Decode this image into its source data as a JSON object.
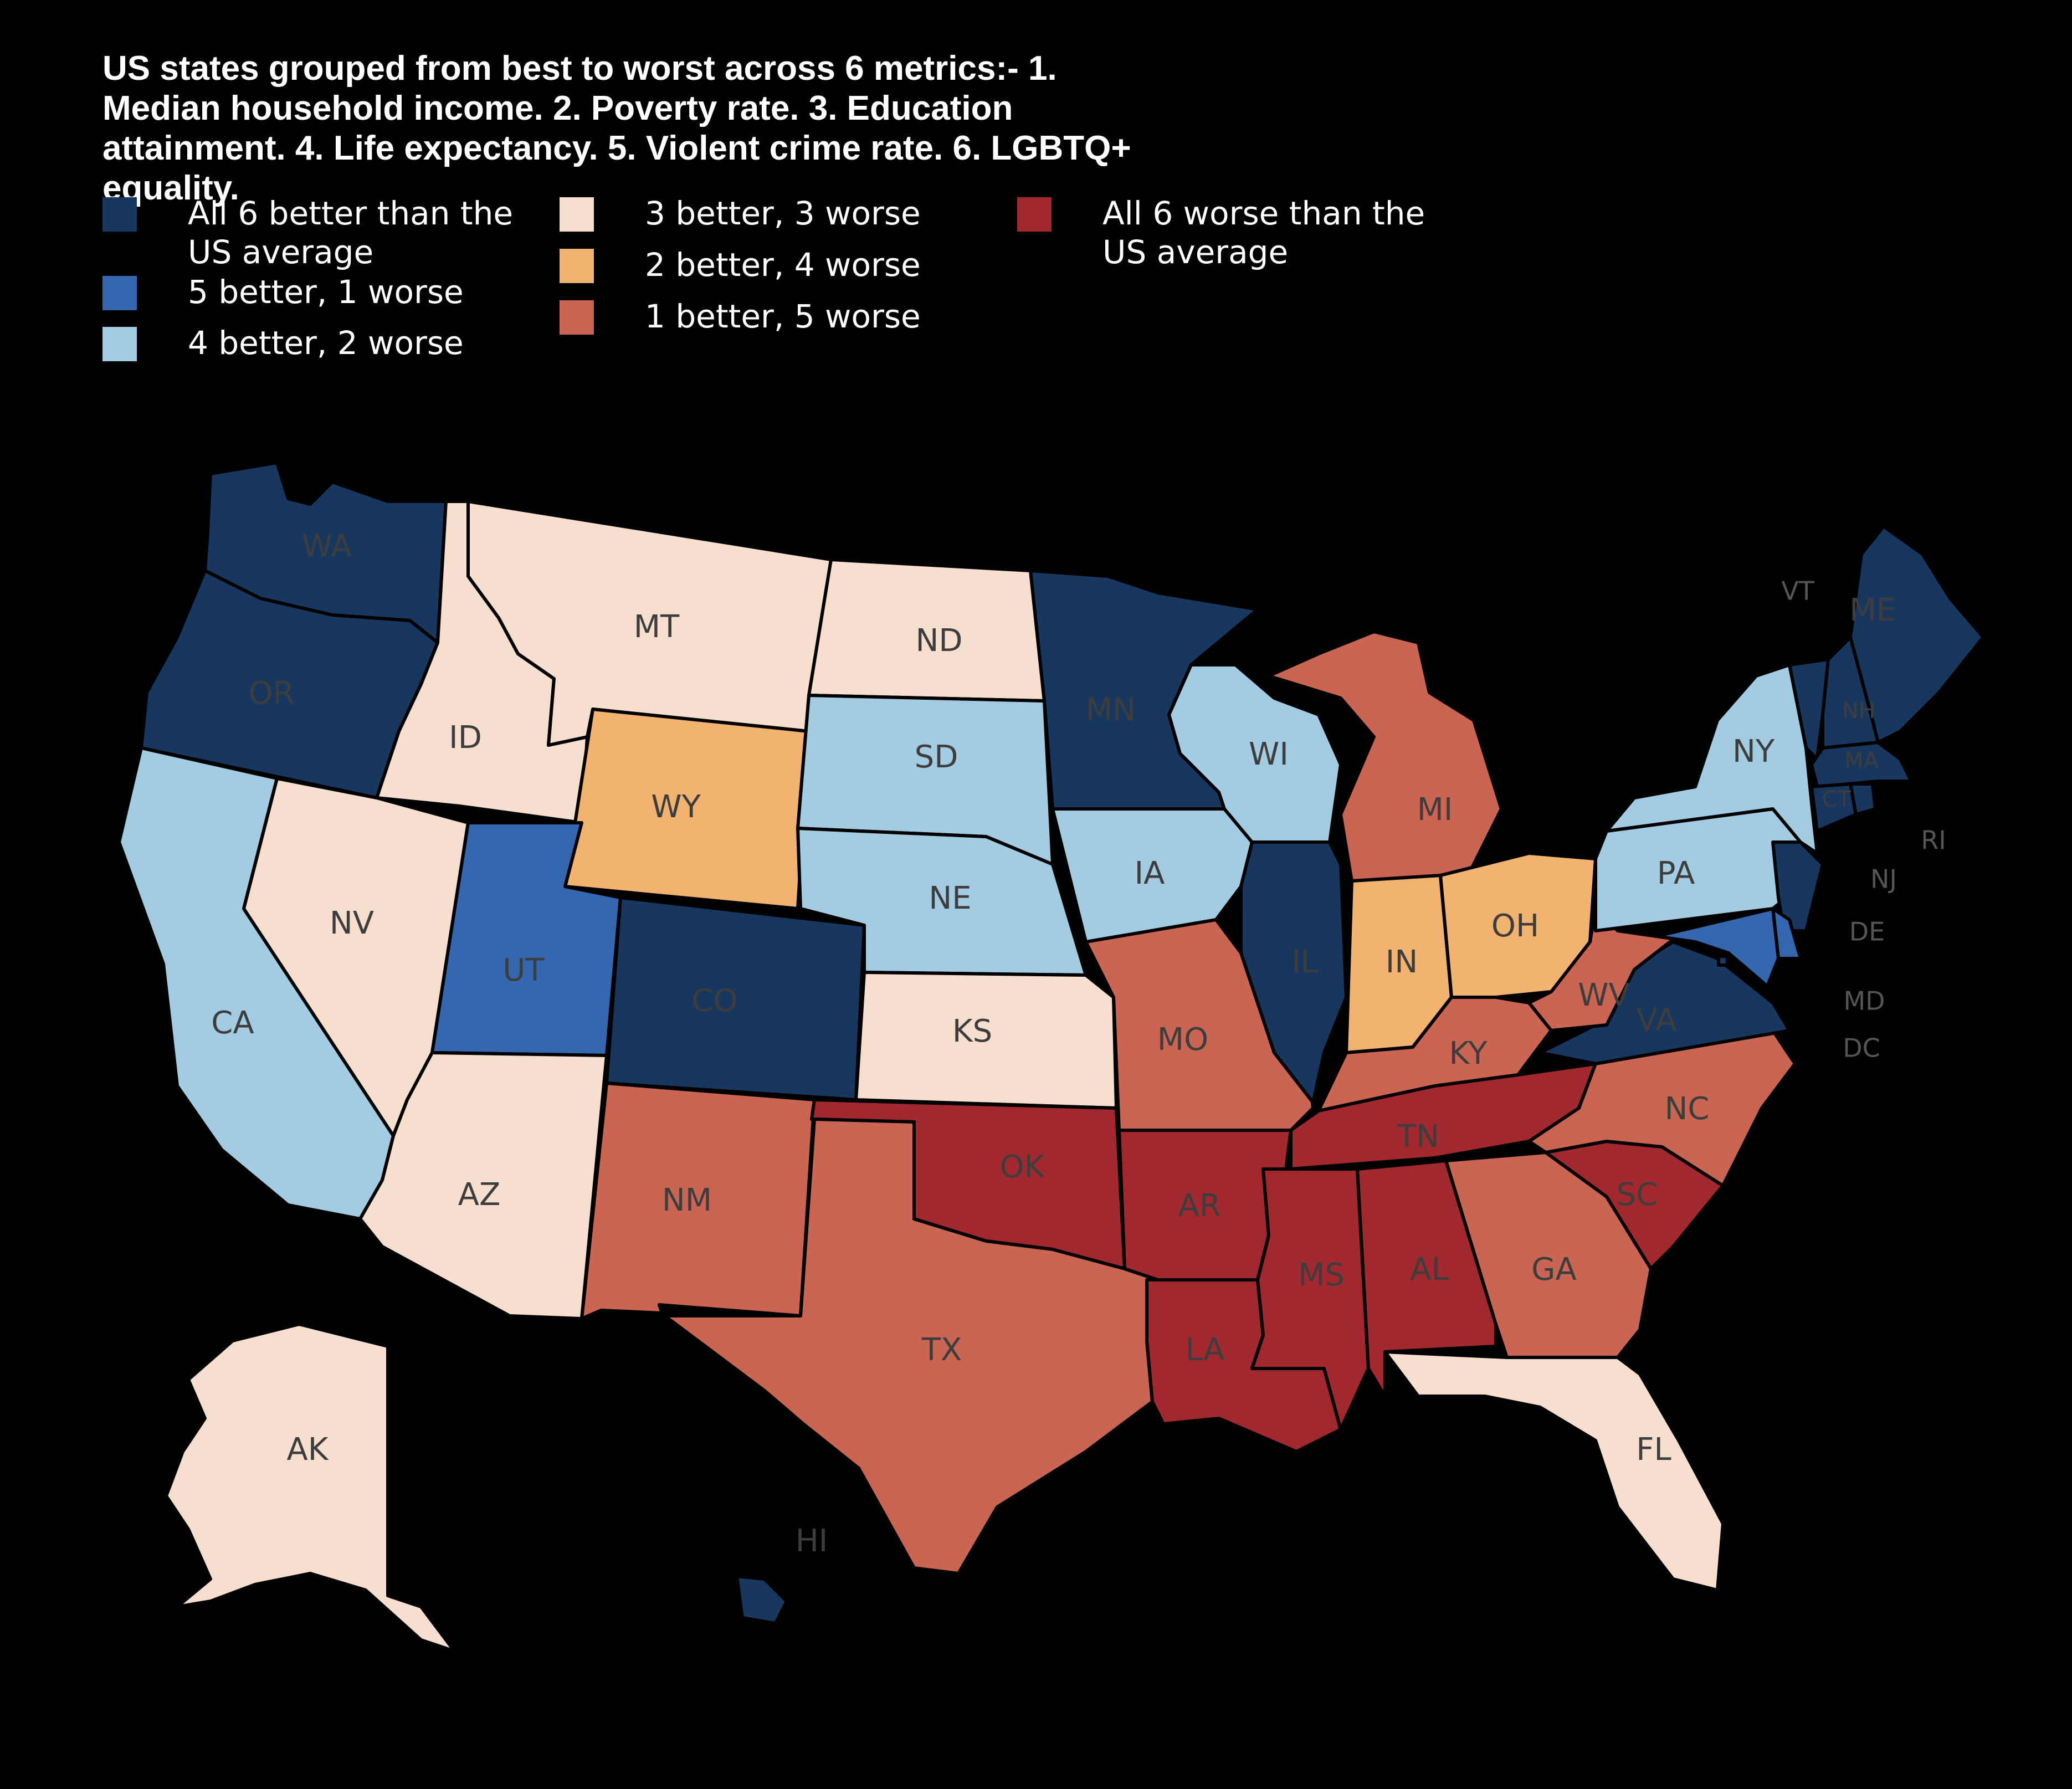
{
  "title": "US states grouped from best to worst across 6 metrics:- 1. Median household income. 2. Poverty rate. 3. Education attainment. 4. Life expectancy. 5. Violent crime rate. 6. LGBTQ+ equality.",
  "legend": [
    {
      "key": "c6",
      "label": "All 6 better than the US average",
      "color": "#17375e"
    },
    {
      "key": "c5",
      "label": "5 better, 1 worse",
      "color": "#3566b0"
    },
    {
      "key": "c4",
      "label": "4 better, 2 worse",
      "color": "#a3cbe2"
    },
    {
      "key": "c3",
      "label": "3 better, 3 worse",
      "color": "#f7dfcf"
    },
    {
      "key": "c2",
      "label": "2 better, 4 worse",
      "color": "#f2b371"
    },
    {
      "key": "c1",
      "label": "1 better, 5 worse",
      "color": "#c96552"
    },
    {
      "key": "c0",
      "label": "All 6 worse than the US average",
      "color": "#a1282f"
    }
  ],
  "states": [
    {
      "abbr": "WA",
      "category": "c6"
    },
    {
      "abbr": "OR",
      "category": "c6"
    },
    {
      "abbr": "CA",
      "category": "c4"
    },
    {
      "abbr": "ID",
      "category": "c3"
    },
    {
      "abbr": "NV",
      "category": "c3"
    },
    {
      "abbr": "MT",
      "category": "c3"
    },
    {
      "abbr": "WY",
      "category": "c2"
    },
    {
      "abbr": "UT",
      "category": "c5"
    },
    {
      "abbr": "AZ",
      "category": "c3"
    },
    {
      "abbr": "CO",
      "category": "c6"
    },
    {
      "abbr": "NM",
      "category": "c1"
    },
    {
      "abbr": "ND",
      "category": "c3"
    },
    {
      "abbr": "SD",
      "category": "c4"
    },
    {
      "abbr": "NE",
      "category": "c4"
    },
    {
      "abbr": "KS",
      "category": "c3"
    },
    {
      "abbr": "OK",
      "category": "c0"
    },
    {
      "abbr": "TX",
      "category": "c1"
    },
    {
      "abbr": "MN",
      "category": "c6"
    },
    {
      "abbr": "IA",
      "category": "c4"
    },
    {
      "abbr": "MO",
      "category": "c1"
    },
    {
      "abbr": "AR",
      "category": "c0"
    },
    {
      "abbr": "LA",
      "category": "c0"
    },
    {
      "abbr": "WI",
      "category": "c4"
    },
    {
      "abbr": "IL",
      "category": "c6"
    },
    {
      "abbr": "MI",
      "category": "c1"
    },
    {
      "abbr": "IN",
      "category": "c2"
    },
    {
      "abbr": "OH",
      "category": "c2"
    },
    {
      "abbr": "KY",
      "category": "c1"
    },
    {
      "abbr": "TN",
      "category": "c0"
    },
    {
      "abbr": "MS",
      "category": "c0"
    },
    {
      "abbr": "AL",
      "category": "c0"
    },
    {
      "abbr": "GA",
      "category": "c1"
    },
    {
      "abbr": "FL",
      "category": "c3"
    },
    {
      "abbr": "SC",
      "category": "c0"
    },
    {
      "abbr": "NC",
      "category": "c1"
    },
    {
      "abbr": "VA",
      "category": "c6"
    },
    {
      "abbr": "WV",
      "category": "c1"
    },
    {
      "abbr": "PA",
      "category": "c4"
    },
    {
      "abbr": "NY",
      "category": "c4"
    },
    {
      "abbr": "VT",
      "category": "c6"
    },
    {
      "abbr": "NH",
      "category": "c6"
    },
    {
      "abbr": "ME",
      "category": "c6"
    },
    {
      "abbr": "MA",
      "category": "c6"
    },
    {
      "abbr": "CT",
      "category": "c6"
    },
    {
      "abbr": "RI",
      "category": "c6"
    },
    {
      "abbr": "NJ",
      "category": "c6"
    },
    {
      "abbr": "DE",
      "category": "c5"
    },
    {
      "abbr": "MD",
      "category": "c5"
    },
    {
      "abbr": "DC",
      "category": "c6"
    },
    {
      "abbr": "AK",
      "category": "c3"
    },
    {
      "abbr": "HI",
      "category": "c6"
    }
  ]
}
